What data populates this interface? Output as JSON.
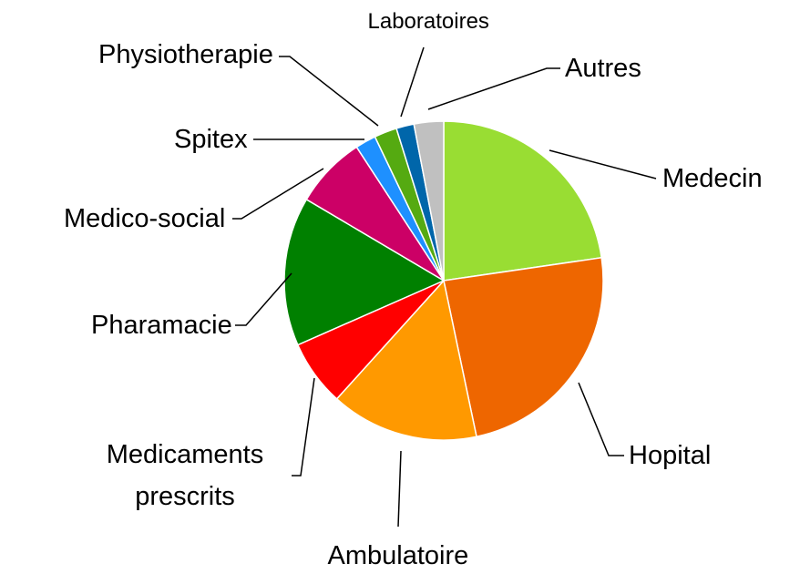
{
  "chart_data": {
    "type": "pie",
    "categories": [
      "Medecin",
      "Hopital",
      "Ambulatoire",
      "Medicaments prescrits",
      "Pharamacie",
      "Medico-social",
      "Spitex",
      "Physiotherapie",
      "Laboratoires",
      "Autres"
    ],
    "values": [
      22.7,
      24.0,
      15.0,
      6.7,
      15.1,
      7.3,
      2.1,
      2.3,
      1.8,
      3.0
    ],
    "colors": [
      "#99dd33",
      "#ee6600",
      "#ff9900",
      "#ff0000",
      "#008000",
      "#cc0066",
      "#1e90ff",
      "#55aa11",
      "#0066aa",
      "#c0c0c0"
    ]
  }
}
